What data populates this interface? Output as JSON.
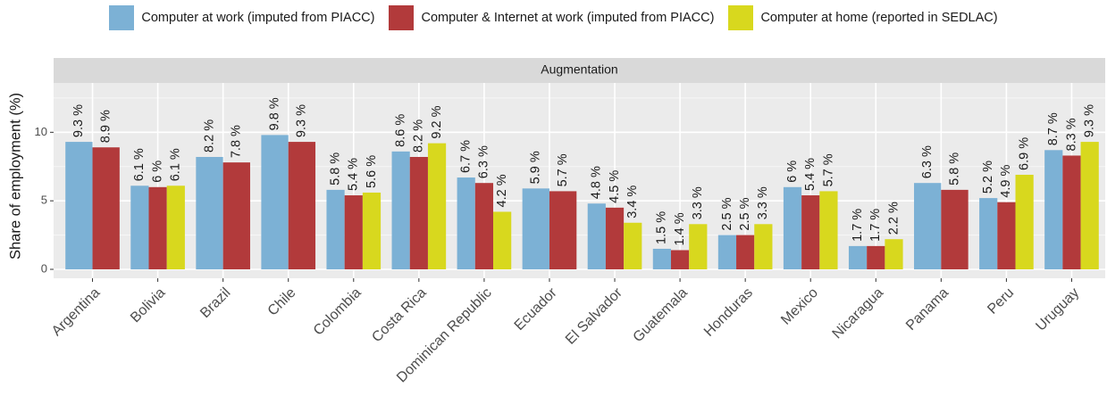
{
  "chart_data": {
    "type": "bar",
    "facet_label": "Augmentation",
    "y_label": "Share of employment (%)",
    "categories": [
      "Argentina",
      "Bolivia",
      "Brazil",
      "Chile",
      "Colombia",
      "Costa Rica",
      "Dominican Republic",
      "Ecuador",
      "El Salvador",
      "Guatemala",
      "Honduras",
      "Mexico",
      "Nicaragua",
      "Panama",
      "Peru",
      "Uruguay"
    ],
    "series": [
      {
        "name": "Computer at work (imputed from PIACC)",
        "color": "#7cb1d5",
        "values": [
          9.3,
          6.1,
          8.2,
          9.8,
          5.8,
          8.6,
          6.7,
          5.9,
          4.8,
          1.5,
          2.5,
          6,
          1.7,
          6.3,
          5.2,
          8.7
        ],
        "value_labels": [
          "9.3 %",
          "6.1 %",
          "8.2 %",
          "9.8 %",
          "5.8 %",
          "8.6 %",
          "6.7 %",
          "5.9 %",
          "4.8 %",
          "1.5 %",
          "2.5 %",
          "6 %",
          "1.7 %",
          "6.3 %",
          "5.2 %",
          "8.7 %"
        ]
      },
      {
        "name": "Computer & Internet at work (imputed from PIACC)",
        "color": "#b23a3b",
        "values": [
          8.9,
          6,
          7.8,
          9.3,
          5.4,
          8.2,
          6.3,
          5.7,
          4.5,
          1.4,
          2.5,
          5.4,
          1.7,
          5.8,
          4.9,
          8.3
        ],
        "value_labels": [
          "8.9 %",
          "6 %",
          "7.8 %",
          "9.3 %",
          "5.4 %",
          "8.2 %",
          "6.3 %",
          "5.7 %",
          "4.5 %",
          "1.4 %",
          "2.5 %",
          "5.4 %",
          "1.7 %",
          "5.8 %",
          "4.9 %",
          "8.3 %"
        ]
      },
      {
        "name": "Computer at home (reported in SEDLAC)",
        "color": "#d8d81e",
        "values": [
          null,
          6.1,
          null,
          null,
          5.6,
          9.2,
          4.2,
          null,
          3.4,
          3.3,
          3.3,
          5.7,
          2.2,
          null,
          6.9,
          9.3
        ],
        "value_labels": [
          null,
          "6.1 %",
          null,
          null,
          "5.6 %",
          "9.2 %",
          "4.2 %",
          null,
          "3.4 %",
          "3.3 %",
          "3.3 %",
          "5.7 %",
          "2.2 %",
          null,
          "6.9 %",
          "9.3 %"
        ]
      }
    ],
    "ylim": [
      -0.65,
      13.6
    ],
    "yticks": [
      0,
      5,
      10
    ],
    "grid": true,
    "legend_position": "top"
  }
}
